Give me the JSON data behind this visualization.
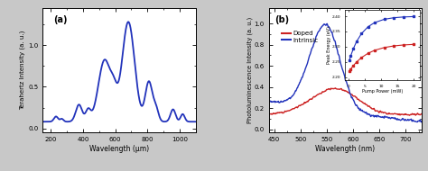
{
  "panel_a": {
    "title": "(a)",
    "xlabel": "Wavelength (μm)",
    "ylabel": "Terahertz Intensity (a. u.)",
    "xlim": [
      150,
      1100
    ],
    "ylim": [
      -0.05,
      1.45
    ],
    "yticks": [
      0.0,
      0.5,
      1.0
    ],
    "xticks": [
      200,
      400,
      600,
      800,
      1000
    ],
    "line_color": "#2233bb",
    "line_width": 1.3
  },
  "panel_b": {
    "title": "(b)",
    "xlabel": "Wavelength (nm)",
    "ylabel": "Photoluminescence Intensity (a. u.)",
    "xlim": [
      440,
      730
    ],
    "ylim": [
      -0.03,
      1.15
    ],
    "yticks": [
      0.0,
      0.2,
      0.4,
      0.6,
      0.8,
      1.0
    ],
    "xticks": [
      450,
      500,
      550,
      600,
      650,
      700
    ],
    "doped_color": "#cc2222",
    "intrinsic_color": "#2233bb",
    "line_width": 1.0
  },
  "inset": {
    "xlabel": "Pump Power (mW)",
    "ylabel": "Peak Energy (eV)",
    "xlim": [
      -1,
      22
    ],
    "ylim": [
      2.19,
      2.42
    ],
    "yticks": [
      2.2,
      2.25,
      2.3,
      2.35,
      2.4
    ],
    "xticks": [
      0,
      5,
      10,
      15,
      20
    ],
    "doped_color": "#cc2222",
    "intrinsic_color": "#2233bb"
  },
  "background_color": "#ffffff",
  "fig_bg": "#c8c8c8"
}
